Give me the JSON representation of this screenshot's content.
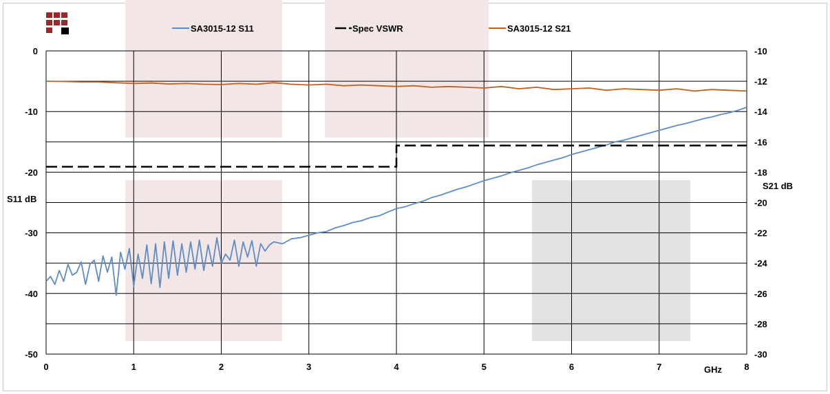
{
  "chart_data": {
    "type": "line",
    "xlabel": "GHz",
    "ylabel_left": "S11 dB",
    "ylabel_right": "S21 dB",
    "xlim": [
      0,
      8
    ],
    "ylim_left": [
      -50,
      0
    ],
    "ylim_right": [
      -30,
      -10
    ],
    "x_ticks": [
      "0",
      "1",
      "2",
      "3",
      "4",
      "5",
      "6",
      "7",
      "8"
    ],
    "y_ticks_left": [
      "0",
      "-10",
      "-20",
      "-30",
      "-40",
      "-50"
    ],
    "y_ticks_right": [
      "-10",
      "-12",
      "-14",
      "-16",
      "-18",
      "-20",
      "-22",
      "-24",
      "-26",
      "-28",
      "-30"
    ],
    "grid": true,
    "legend_position": "top",
    "series": [
      {
        "name": "SA3015-12 S11",
        "axis": "left",
        "color": "#5b8cc6",
        "x": [
          0.0,
          0.05,
          0.1,
          0.15,
          0.2,
          0.25,
          0.3,
          0.35,
          0.4,
          0.45,
          0.5,
          0.55,
          0.6,
          0.65,
          0.7,
          0.75,
          0.8,
          0.85,
          0.9,
          0.95,
          1.0,
          1.05,
          1.1,
          1.15,
          1.2,
          1.25,
          1.3,
          1.35,
          1.4,
          1.45,
          1.5,
          1.55,
          1.6,
          1.65,
          1.7,
          1.75,
          1.8,
          1.85,
          1.9,
          1.95,
          2.0,
          2.05,
          2.1,
          2.15,
          2.2,
          2.25,
          2.3,
          2.35,
          2.4,
          2.45,
          2.5,
          2.55,
          2.6,
          2.7,
          2.8,
          2.9,
          3.0,
          3.1,
          3.2,
          3.3,
          3.4,
          3.5,
          3.6,
          3.7,
          3.8,
          3.9,
          4.0,
          4.1,
          4.2,
          4.3,
          4.4,
          4.5,
          4.6,
          4.7,
          4.8,
          4.9,
          5.0,
          5.1,
          5.2,
          5.3,
          5.4,
          5.5,
          5.6,
          5.7,
          5.8,
          5.9,
          6.0,
          6.1,
          6.2,
          6.3,
          6.4,
          6.5,
          6.6,
          6.7,
          6.8,
          6.9,
          7.0,
          7.1,
          7.2,
          7.3,
          7.4,
          7.5,
          7.6,
          7.7,
          7.8,
          7.9,
          8.0
        ],
        "values": [
          -38.0,
          -37.2,
          -38.5,
          -36.2,
          -38.0,
          -35.2,
          -37.0,
          -36.5,
          -34.8,
          -38.5,
          -35.2,
          -34.5,
          -38.0,
          -33.8,
          -36.5,
          -34.0,
          -40.3,
          -33.2,
          -36.0,
          -32.6,
          -38.8,
          -33.5,
          -37.5,
          -32.0,
          -38.4,
          -31.8,
          -39.0,
          -31.5,
          -37.5,
          -31.3,
          -37.0,
          -31.8,
          -36.5,
          -31.5,
          -36.0,
          -31.2,
          -36.2,
          -32.0,
          -35.5,
          -30.8,
          -35.0,
          -33.5,
          -34.5,
          -31.2,
          -35.5,
          -31.5,
          -34.0,
          -31.3,
          -35.5,
          -31.8,
          -33.0,
          -32.0,
          -31.5,
          -31.8,
          -31.0,
          -30.8,
          -30.4,
          -30.0,
          -29.8,
          -29.2,
          -28.8,
          -28.3,
          -28.0,
          -27.5,
          -27.2,
          -26.6,
          -26.0,
          -25.7,
          -25.2,
          -24.8,
          -24.2,
          -23.8,
          -23.3,
          -22.8,
          -22.4,
          -21.9,
          -21.4,
          -21.0,
          -20.6,
          -20.1,
          -19.7,
          -19.3,
          -18.8,
          -18.4,
          -18.0,
          -17.6,
          -17.1,
          -16.7,
          -16.3,
          -15.9,
          -15.5,
          -15.0,
          -14.7,
          -14.3,
          -13.9,
          -13.5,
          -13.1,
          -12.7,
          -12.3,
          -12.0,
          -11.6,
          -11.2,
          -10.9,
          -10.5,
          -10.2,
          -9.8,
          -9.3
        ]
      },
      {
        "name": "Spec VSWR",
        "axis": "left",
        "color": "#000000",
        "dashed": true,
        "x": [
          0,
          4.0,
          4.0,
          8.0
        ],
        "values": [
          -19.1,
          -19.1,
          -15.6,
          -15.6
        ]
      },
      {
        "name": "SA3015-12 S21",
        "axis": "right",
        "color": "#c0601c",
        "x": [
          0.0,
          0.2,
          0.4,
          0.6,
          0.8,
          1.0,
          1.2,
          1.4,
          1.6,
          1.8,
          2.0,
          2.2,
          2.4,
          2.6,
          2.8,
          3.0,
          3.2,
          3.4,
          3.6,
          3.8,
          4.0,
          4.2,
          4.4,
          4.6,
          4.8,
          5.0,
          5.2,
          5.4,
          5.6,
          5.8,
          6.0,
          6.2,
          6.4,
          6.6,
          6.8,
          7.0,
          7.2,
          7.4,
          7.6,
          7.8,
          8.0
        ],
        "values": [
          -12.0,
          -12.02,
          -12.05,
          -12.05,
          -12.1,
          -12.15,
          -12.12,
          -12.18,
          -12.15,
          -12.2,
          -12.22,
          -12.15,
          -12.2,
          -12.1,
          -12.2,
          -12.25,
          -12.2,
          -12.3,
          -12.25,
          -12.3,
          -12.35,
          -12.3,
          -12.4,
          -12.35,
          -12.4,
          -12.45,
          -12.35,
          -12.5,
          -12.4,
          -12.55,
          -12.5,
          -12.45,
          -12.6,
          -12.5,
          -12.55,
          -12.6,
          -12.5,
          -12.65,
          -12.55,
          -12.6,
          -12.65
        ]
      }
    ]
  }
}
